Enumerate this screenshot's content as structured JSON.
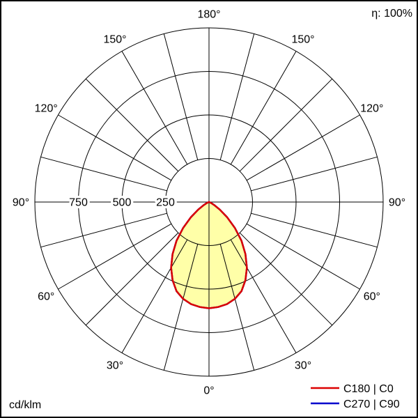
{
  "header": {
    "efficiency": "η: 100%"
  },
  "footer": {
    "unit": "cd/klm"
  },
  "legend": [
    {
      "label": "C180 | C0",
      "color": "#dc0000"
    },
    {
      "label": "C270 | C90",
      "color": "#0000cd"
    }
  ],
  "chart_data": {
    "type": "polar",
    "unit": "cd/klm",
    "efficiency_percent": 100,
    "r_max": 1000,
    "grid_circles": [
      250,
      500,
      750,
      1000
    ],
    "grid_step_deg": 15,
    "angle_labels_deg": [
      0,
      30,
      60,
      90,
      120,
      150,
      180
    ],
    "radial_ticks": [
      250,
      500,
      750
    ],
    "fill_color": "#ffffa8",
    "legend_position": "bottom-right",
    "series": [
      {
        "name": "C180 | C0",
        "color": "#dc0000",
        "gamma_deg": [
          0,
          5,
          10,
          15,
          20,
          25,
          30,
          35,
          40,
          45,
          50,
          55,
          60,
          65,
          70,
          75,
          80,
          85,
          90
        ],
        "intensity": [
          610,
          605,
          595,
          575,
          545,
          495,
          435,
          365,
          290,
          210,
          135,
          75,
          35,
          15,
          5,
          0,
          0,
          0,
          0
        ]
      },
      {
        "name": "C270 | C90",
        "color": "#0000cd",
        "gamma_deg": [
          0,
          5,
          10,
          15,
          20,
          25,
          30,
          35,
          40,
          45,
          50,
          55,
          60,
          65,
          70,
          75,
          80,
          85,
          90
        ],
        "intensity": [
          610,
          605,
          595,
          575,
          545,
          495,
          435,
          365,
          290,
          210,
          135,
          75,
          35,
          15,
          5,
          0,
          0,
          0,
          0
        ]
      }
    ]
  }
}
